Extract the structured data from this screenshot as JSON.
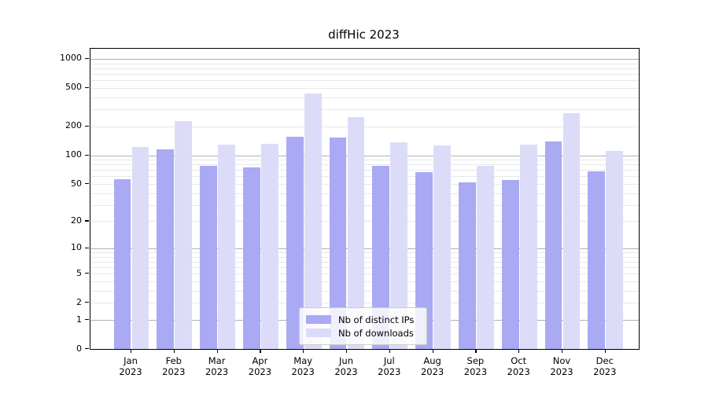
{
  "title": "diffHic 2023",
  "chart_data": {
    "type": "bar",
    "title": "diffHic 2023",
    "categories": [
      "Jan 2023",
      "Feb 2023",
      "Mar 2023",
      "Apr 2023",
      "May 2023",
      "Jun 2023",
      "Jul 2023",
      "Aug 2023",
      "Sep 2023",
      "Oct 2023",
      "Nov 2023",
      "Dec 2023"
    ],
    "series": [
      {
        "name": "Nb of distinct IPs",
        "color": "#a9a9f4",
        "values": [
          56,
          115,
          77,
          75,
          155,
          153,
          77,
          67,
          52,
          55,
          138,
          68
        ]
      },
      {
        "name": "Nb of downloads",
        "color": "#dcdcf9",
        "values": [
          122,
          228,
          128,
          131,
          440,
          250,
          137,
          127,
          78,
          130,
          275,
          110
        ]
      }
    ],
    "xlabel": "",
    "ylabel": "",
    "yscale": "log1p",
    "yticks": [
      0,
      1,
      2,
      5,
      10,
      20,
      50,
      100,
      200,
      500,
      1000
    ],
    "ylim": [
      0,
      1276
    ],
    "grid": true,
    "legend_position": "lower center"
  },
  "colors": {
    "major_grid": "#b0b0b0",
    "minor_grid": "#e8e8e8",
    "axis": "#000000",
    "background": "#ffffff"
  }
}
